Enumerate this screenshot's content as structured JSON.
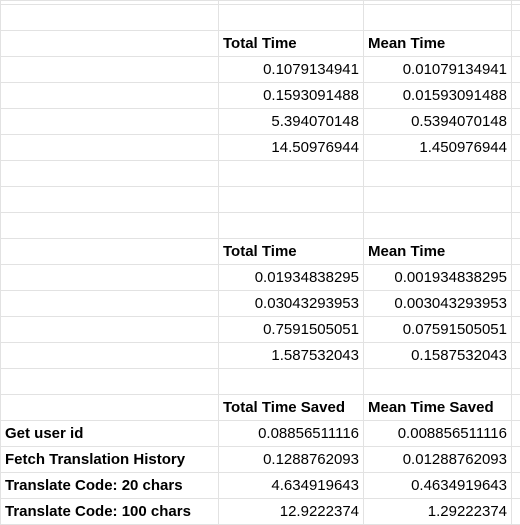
{
  "table1": {
    "headers": [
      "Total Time",
      "Mean Time"
    ],
    "rows": [
      [
        "0.1079134941",
        "0.01079134941"
      ],
      [
        "0.1593091488",
        "0.01593091488"
      ],
      [
        "5.394070148",
        "0.5394070148"
      ],
      [
        "14.50976944",
        "1.450976944"
      ]
    ]
  },
  "table2": {
    "headers": [
      "Total Time",
      "Mean Time"
    ],
    "rows": [
      [
        "0.01934838295",
        "0.001934838295"
      ],
      [
        "0.03043293953",
        "0.003043293953"
      ],
      [
        "0.7591505051",
        "0.07591505051"
      ],
      [
        "1.587532043",
        "0.1587532043"
      ]
    ]
  },
  "table3": {
    "headers": [
      "Total Time Saved",
      "Mean Time Saved"
    ],
    "rows": [
      {
        "label": "Get user id",
        "total": "0.08856511116",
        "mean": "0.008856511116"
      },
      {
        "label": "Fetch Translation History",
        "total": "0.1288762093",
        "mean": "0.01288762093"
      },
      {
        "label": "Translate Code: 20 chars",
        "total": "4.634919643",
        "mean": "0.4634919643"
      },
      {
        "label": "Translate Code: 100 chars",
        "total": "12.9222374",
        "mean": "1.29222374"
      }
    ]
  }
}
